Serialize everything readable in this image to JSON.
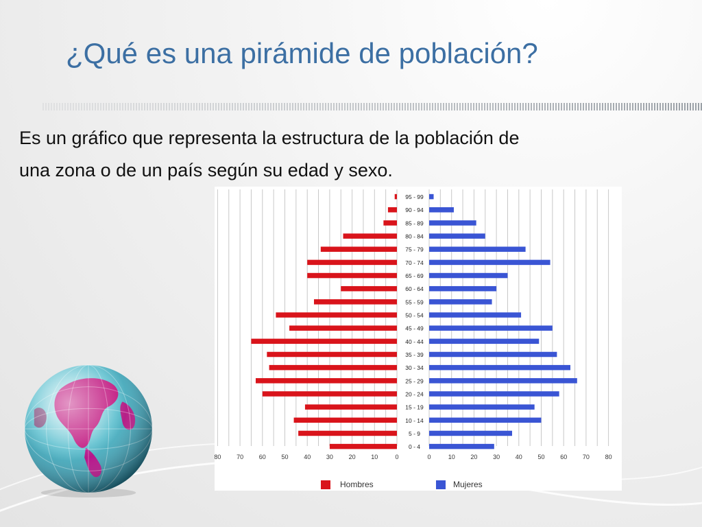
{
  "slide": {
    "title": "¿Qué es una pirámide de población?",
    "body_line1": "Es un gráfico que representa la estructura de la población de",
    "body_line2": "una zona o de un país según su edad y sexo."
  },
  "colors": {
    "title": "#3c6fa3",
    "hombres": "#d9141b",
    "mujeres": "#3a55d4",
    "grid": "#c8c8c8"
  },
  "chart_data": {
    "type": "bar",
    "orientation": "horizontal-population-pyramid",
    "categories": [
      "0 - 4",
      "5 - 9",
      "10 - 14",
      "15 - 19",
      "20 - 24",
      "25 - 29",
      "30 - 34",
      "35 - 39",
      "40 - 44",
      "45 - 49",
      "50 - 54",
      "55 - 59",
      "60 - 64",
      "65 - 69",
      "70 - 74",
      "75 - 79",
      "80 - 84",
      "85 - 89",
      "90 - 94",
      "95 - 99"
    ],
    "series": [
      {
        "name": "Hombres",
        "values": [
          30,
          44,
          46,
          41,
          60,
          63,
          57,
          58,
          65,
          48,
          54,
          37,
          25,
          40,
          40,
          34,
          24,
          6,
          4,
          1
        ]
      },
      {
        "name": "Mujeres",
        "values": [
          29,
          37,
          50,
          47,
          58,
          66,
          63,
          57,
          49,
          55,
          41,
          28,
          30,
          35,
          54,
          43,
          25,
          21,
          11,
          2
        ]
      }
    ],
    "x_ticks_left": [
      "80",
      "70",
      "60",
      "50",
      "40",
      "30",
      "20",
      "10",
      "0"
    ],
    "x_ticks_right": [
      "0",
      "10",
      "20",
      "30",
      "40",
      "50",
      "60",
      "70",
      "80"
    ],
    "xlim": [
      0,
      80
    ],
    "grid": true,
    "legend": {
      "position": "bottom",
      "items": [
        "Hombres",
        "Mujeres"
      ]
    }
  }
}
